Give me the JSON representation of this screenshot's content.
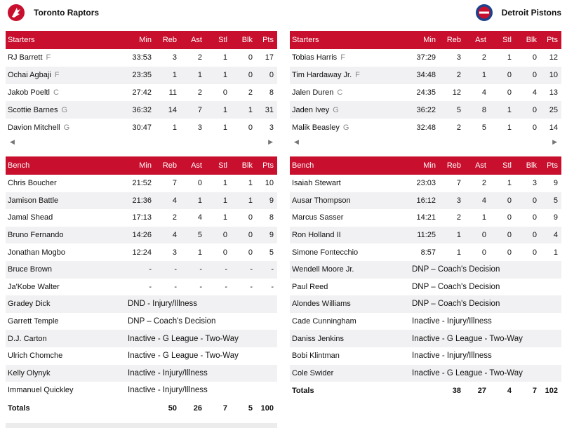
{
  "teams": {
    "left": {
      "name": "Toronto Raptors",
      "color": "#c8102e"
    },
    "right": {
      "name": "Detroit Pistons",
      "color": "#1d428a"
    }
  },
  "columns": {
    "min": "Min",
    "reb": "Reb",
    "ast": "Ast",
    "stl": "Stl",
    "blk": "Blk",
    "pts": "Pts"
  },
  "sections": {
    "starters": "Starters",
    "bench": "Bench",
    "totals": "Totals"
  },
  "tor_starters": [
    {
      "name": "RJ Barrett",
      "pos": "F",
      "min": "33:53",
      "reb": "3",
      "ast": "2",
      "stl": "1",
      "blk": "0",
      "pts": "17"
    },
    {
      "name": "Ochai Agbaji",
      "pos": "F",
      "min": "23:35",
      "reb": "1",
      "ast": "1",
      "stl": "1",
      "blk": "0",
      "pts": "0"
    },
    {
      "name": "Jakob Poeltl",
      "pos": "C",
      "min": "27:42",
      "reb": "11",
      "ast": "2",
      "stl": "0",
      "blk": "2",
      "pts": "8"
    },
    {
      "name": "Scottie Barnes",
      "pos": "G",
      "min": "36:32",
      "reb": "14",
      "ast": "7",
      "stl": "1",
      "blk": "1",
      "pts": "31"
    },
    {
      "name": "Davion Mitchell",
      "pos": "G",
      "min": "30:47",
      "reb": "1",
      "ast": "3",
      "stl": "1",
      "blk": "0",
      "pts": "3"
    }
  ],
  "det_starters": [
    {
      "name": "Tobias Harris",
      "pos": "F",
      "min": "37:29",
      "reb": "3",
      "ast": "2",
      "stl": "1",
      "blk": "0",
      "pts": "12"
    },
    {
      "name": "Tim Hardaway Jr.",
      "pos": "F",
      "min": "34:48",
      "reb": "2",
      "ast": "1",
      "stl": "0",
      "blk": "0",
      "pts": "10"
    },
    {
      "name": "Jalen Duren",
      "pos": "C",
      "min": "24:35",
      "reb": "12",
      "ast": "4",
      "stl": "0",
      "blk": "4",
      "pts": "13"
    },
    {
      "name": "Jaden Ivey",
      "pos": "G",
      "min": "36:22",
      "reb": "5",
      "ast": "8",
      "stl": "1",
      "blk": "0",
      "pts": "25"
    },
    {
      "name": "Malik Beasley",
      "pos": "G",
      "min": "32:48",
      "reb": "2",
      "ast": "5",
      "stl": "1",
      "blk": "0",
      "pts": "14"
    }
  ],
  "tor_bench": [
    {
      "name": "Chris Boucher",
      "min": "21:52",
      "reb": "7",
      "ast": "0",
      "stl": "1",
      "blk": "1",
      "pts": "10"
    },
    {
      "name": "Jamison Battle",
      "min": "21:36",
      "reb": "4",
      "ast": "1",
      "stl": "1",
      "blk": "1",
      "pts": "9"
    },
    {
      "name": "Jamal Shead",
      "min": "17:13",
      "reb": "2",
      "ast": "4",
      "stl": "1",
      "blk": "0",
      "pts": "8"
    },
    {
      "name": "Bruno Fernando",
      "min": "14:26",
      "reb": "4",
      "ast": "5",
      "stl": "0",
      "blk": "0",
      "pts": "9"
    },
    {
      "name": "Jonathan Mogbo",
      "min": "12:24",
      "reb": "3",
      "ast": "1",
      "stl": "0",
      "blk": "0",
      "pts": "5"
    },
    {
      "name": "Bruce Brown",
      "min": "-",
      "reb": "-",
      "ast": "-",
      "stl": "-",
      "blk": "-",
      "pts": "-"
    },
    {
      "name": "Ja'Kobe Walter",
      "min": "-",
      "reb": "-",
      "ast": "-",
      "stl": "-",
      "blk": "-",
      "pts": "-"
    },
    {
      "name": "Gradey Dick",
      "note": "DND - Injury/Illness"
    },
    {
      "name": "Garrett Temple",
      "note": "DNP – Coach's Decision"
    },
    {
      "name": "D.J. Carton",
      "note": "Inactive - G League - Two-Way"
    },
    {
      "name": "Ulrich Chomche",
      "note": "Inactive - G League - Two-Way"
    },
    {
      "name": "Kelly Olynyk",
      "note": "Inactive - Injury/Illness"
    },
    {
      "name": "Immanuel Quickley",
      "note": "Inactive - Injury/Illness"
    }
  ],
  "tor_totals": {
    "reb": "50",
    "ast": "26",
    "stl": "7",
    "blk": "5",
    "pts": "100"
  },
  "det_bench": [
    {
      "name": "Isaiah Stewart",
      "min": "23:03",
      "reb": "7",
      "ast": "2",
      "stl": "1",
      "blk": "3",
      "pts": "9"
    },
    {
      "name": "Ausar Thompson",
      "min": "16:12",
      "reb": "3",
      "ast": "4",
      "stl": "0",
      "blk": "0",
      "pts": "5"
    },
    {
      "name": "Marcus Sasser",
      "min": "14:21",
      "reb": "2",
      "ast": "1",
      "stl": "0",
      "blk": "0",
      "pts": "9"
    },
    {
      "name": "Ron Holland II",
      "min": "11:25",
      "reb": "1",
      "ast": "0",
      "stl": "0",
      "blk": "0",
      "pts": "4"
    },
    {
      "name": "Simone Fontecchio",
      "min": "8:57",
      "reb": "1",
      "ast": "0",
      "stl": "0",
      "blk": "0",
      "pts": "1"
    },
    {
      "name": "Wendell Moore Jr.",
      "note": "DNP – Coach's Decision"
    },
    {
      "name": "Paul Reed",
      "note": "DNP – Coach's Decision"
    },
    {
      "name": "Alondes Williams",
      "note": "DNP – Coach's Decision"
    },
    {
      "name": "Cade Cunningham",
      "note": "Inactive - Injury/Illness"
    },
    {
      "name": "Daniss Jenkins",
      "note": "Inactive - G League - Two-Way"
    },
    {
      "name": "Bobi Klintman",
      "note": "Inactive - Injury/Illness"
    },
    {
      "name": "Cole Swider",
      "note": "Inactive - G League - Two-Way"
    }
  ],
  "det_totals": {
    "reb": "38",
    "ast": "27",
    "stl": "4",
    "blk": "7",
    "pts": "102"
  },
  "icons": {
    "scroll_left": "scroll-left-arrow-icon",
    "scroll_right": "scroll-right-arrow-icon"
  }
}
